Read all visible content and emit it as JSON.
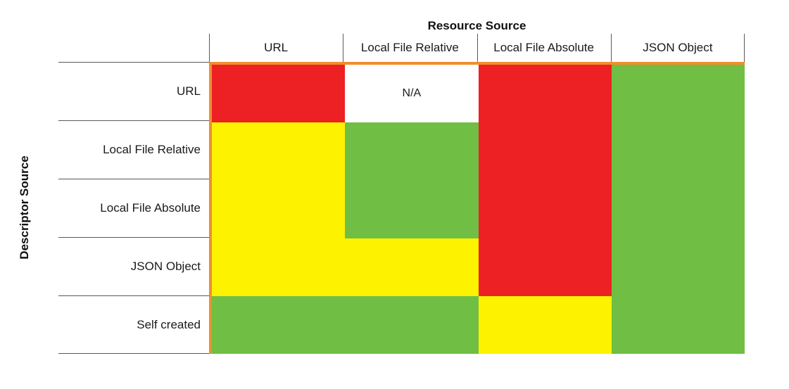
{
  "header": {
    "title": "Resource Source"
  },
  "y_axis": {
    "label": "Descriptor Source"
  },
  "columns": [
    "URL",
    "Local File Relative",
    "Local File Absolute",
    "JSON Object"
  ],
  "rows": [
    "URL",
    "Local File Relative",
    "Local File Absolute",
    "JSON Object",
    "Self created"
  ],
  "matrix": [
    [
      "red",
      "na",
      "red",
      "green"
    ],
    [
      "yellow",
      "green",
      "red",
      "green"
    ],
    [
      "yellow",
      "green",
      "red",
      "green"
    ],
    [
      "yellow",
      "yellow",
      "red",
      "green"
    ],
    [
      "green",
      "green",
      "yellow",
      "green"
    ]
  ],
  "na_text": "N/A",
  "colors": {
    "red": "#ed2024",
    "yellow": "#fdf200",
    "green": "#70bf44",
    "na_bg": "#ffffff",
    "border_orange": "#ef8f2c",
    "line_gray": "#595959",
    "text": "#1a1a1a"
  },
  "chart_data": {
    "type": "heatmap",
    "title": "Resource Source",
    "xlabel": "Resource Source",
    "ylabel": "Descriptor Source",
    "x_categories": [
      "URL",
      "Local File Relative",
      "Local File Absolute",
      "JSON Object"
    ],
    "y_categories": [
      "URL",
      "Local File Relative",
      "Local File Absolute",
      "JSON Object",
      "Self created"
    ],
    "values": [
      [
        "red",
        "N/A",
        "red",
        "green"
      ],
      [
        "yellow",
        "green",
        "red",
        "green"
      ],
      [
        "yellow",
        "green",
        "red",
        "green"
      ],
      [
        "yellow",
        "yellow",
        "red",
        "green"
      ],
      [
        "green",
        "green",
        "yellow",
        "green"
      ]
    ],
    "color_map": {
      "red": "#ed2024",
      "yellow": "#fdf200",
      "green": "#70bf44",
      "N/A": "#ffffff"
    },
    "legend": "none",
    "grid": "off"
  }
}
